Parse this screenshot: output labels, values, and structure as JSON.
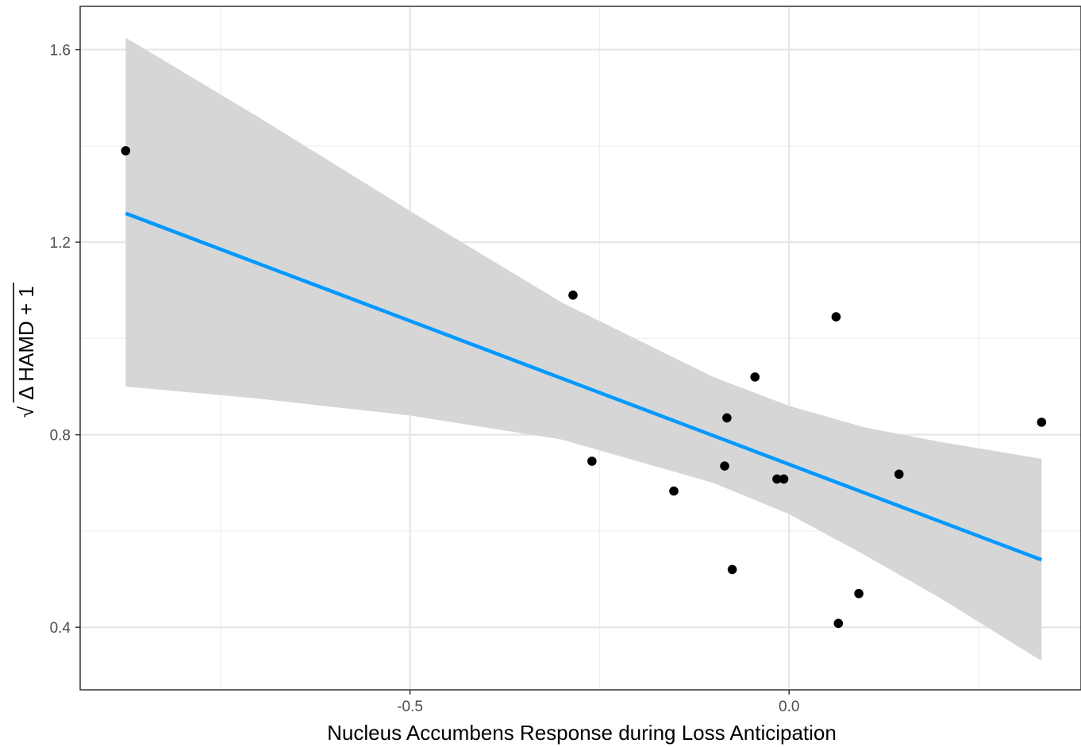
{
  "chart_data": {
    "type": "scatter",
    "title": "",
    "xlabel": "Nucleus Accumbens Response during Loss Anticipation",
    "ylabel": {
      "root_symbol": "√",
      "expression": "Δ HAMD + 1"
    },
    "xlim": [
      -0.935,
      0.385
    ],
    "ylim": [
      0.27,
      1.69
    ],
    "x_ticks": [
      {
        "value": -0.5,
        "label": "-0.5"
      },
      {
        "value": 0.0,
        "label": "0.0"
      }
    ],
    "x_minor": [
      -0.75,
      -0.25,
      0.25
    ],
    "y_ticks": [
      {
        "value": 0.4,
        "label": "0.4"
      },
      {
        "value": 0.8,
        "label": "0.8"
      },
      {
        "value": 1.2,
        "label": "1.2"
      },
      {
        "value": 1.6,
        "label": "1.6"
      }
    ],
    "y_minor": [
      0.6,
      1.0,
      1.4
    ],
    "grid": true,
    "points": [
      {
        "x": -0.875,
        "y": 1.39
      },
      {
        "x": -0.285,
        "y": 1.09
      },
      {
        "x": -0.26,
        "y": 0.745
      },
      {
        "x": -0.152,
        "y": 0.683
      },
      {
        "x": -0.085,
        "y": 0.735
      },
      {
        "x": -0.082,
        "y": 0.835
      },
      {
        "x": -0.075,
        "y": 0.52
      },
      {
        "x": -0.045,
        "y": 0.92
      },
      {
        "x": -0.016,
        "y": 0.708
      },
      {
        "x": -0.007,
        "y": 0.708
      },
      {
        "x": 0.062,
        "y": 1.045
      },
      {
        "x": 0.065,
        "y": 0.408
      },
      {
        "x": 0.092,
        "y": 0.47
      },
      {
        "x": 0.145,
        "y": 0.718
      },
      {
        "x": 0.333,
        "y": 0.826
      }
    ],
    "fit_line": {
      "type": "linear",
      "x": [
        -0.875,
        0.333
      ],
      "y": [
        1.26,
        0.54
      ],
      "color": "#0099ff"
    },
    "confidence_band": {
      "x": [
        -0.875,
        -0.7,
        -0.5,
        -0.3,
        -0.1,
        0.0,
        0.1,
        0.2,
        0.333
      ],
      "upper": [
        1.625,
        1.46,
        1.265,
        1.075,
        0.92,
        0.86,
        0.815,
        0.785,
        0.75
      ],
      "lower": [
        0.9,
        0.875,
        0.84,
        0.79,
        0.7,
        0.635,
        0.55,
        0.46,
        0.33
      ],
      "color": "#d6d6d6"
    },
    "point_color": "#000000"
  }
}
